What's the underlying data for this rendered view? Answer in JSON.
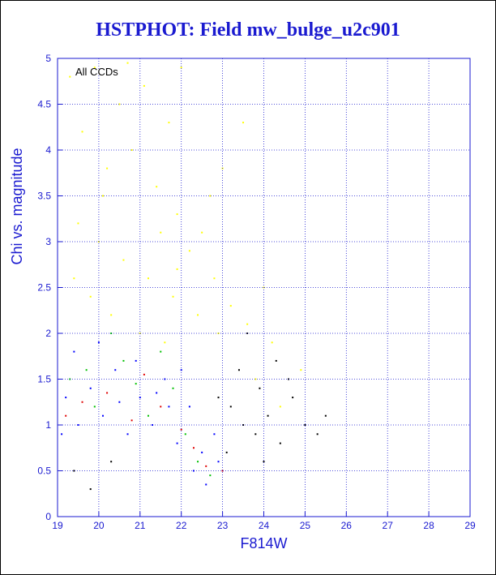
{
  "chart_data": {
    "type": "scatter",
    "title": "HSTPHOT: Field mw_bulge_u2c901",
    "xlabel": "F814W",
    "ylabel": "Chi vs. magnitude",
    "annotation": "All CCDs",
    "xlim": [
      19,
      29
    ],
    "ylim": [
      0,
      5
    ],
    "x_ticks": [
      19,
      20,
      21,
      22,
      23,
      24,
      25,
      26,
      27,
      28,
      29
    ],
    "y_ticks": [
      0,
      0.5,
      1,
      1.5,
      2,
      2.5,
      3,
      3.5,
      4,
      4.5,
      5
    ],
    "grid": true,
    "series": [
      {
        "color": "#ffff00",
        "description_points": [
          [
            19.3,
            4.8
          ],
          [
            19.6,
            4.2
          ],
          [
            19.9,
            4.9
          ],
          [
            20.2,
            3.8
          ],
          [
            20.5,
            4.5
          ],
          [
            20.8,
            4.0
          ],
          [
            21.1,
            4.7
          ],
          [
            21.4,
            3.6
          ],
          [
            21.7,
            4.3
          ],
          [
            21.9,
            3.3
          ],
          [
            19.5,
            3.2
          ],
          [
            20.0,
            3.0
          ],
          [
            20.6,
            2.8
          ],
          [
            21.2,
            2.6
          ],
          [
            21.8,
            2.4
          ],
          [
            22.2,
            2.9
          ],
          [
            22.5,
            3.1
          ],
          [
            22.8,
            2.6
          ],
          [
            23.2,
            2.3
          ],
          [
            19.4,
            2.6
          ],
          [
            20.3,
            2.2
          ],
          [
            21.0,
            2.0
          ],
          [
            21.6,
            1.9
          ],
          [
            22.4,
            2.2
          ],
          [
            23.6,
            2.1
          ],
          [
            24.2,
            1.9
          ],
          [
            22.0,
            4.9
          ],
          [
            20.7,
            4.95
          ],
          [
            23.0,
            3.8
          ],
          [
            23.5,
            4.3
          ],
          [
            19.8,
            2.4
          ],
          [
            21.5,
            3.1
          ],
          [
            22.7,
            3.5
          ],
          [
            24.0,
            2.5
          ],
          [
            20.1,
            3.5
          ],
          [
            21.9,
            2.7
          ],
          [
            22.9,
            2.0
          ],
          [
            23.8,
            1.5
          ],
          [
            24.4,
            1.2
          ],
          [
            24.9,
            1.6
          ]
        ]
      },
      {
        "color": "#0000ff",
        "description_points": [
          [
            19.2,
            1.3
          ],
          [
            19.5,
            1.0
          ],
          [
            19.8,
            1.4
          ],
          [
            20.1,
            1.1
          ],
          [
            20.4,
            1.6
          ],
          [
            20.7,
            0.9
          ],
          [
            21.0,
            1.3
          ],
          [
            21.3,
            1.0
          ],
          [
            21.6,
            1.5
          ],
          [
            21.9,
            0.8
          ],
          [
            22.2,
            1.2
          ],
          [
            22.5,
            0.7
          ],
          [
            22.8,
            0.9
          ],
          [
            19.4,
            1.8
          ],
          [
            20.0,
            1.9
          ],
          [
            20.9,
            1.7
          ],
          [
            21.7,
            1.2
          ],
          [
            22.3,
            0.5
          ],
          [
            22.6,
            0.35
          ],
          [
            19.1,
            0.9
          ],
          [
            20.5,
            1.25
          ],
          [
            21.4,
            1.35
          ],
          [
            22.0,
            1.6
          ],
          [
            22.9,
            0.6
          ]
        ]
      },
      {
        "color": "#00c000",
        "description_points": [
          [
            19.3,
            1.5
          ],
          [
            19.9,
            1.2
          ],
          [
            20.6,
            1.7
          ],
          [
            21.2,
            1.1
          ],
          [
            21.8,
            1.4
          ],
          [
            22.1,
            0.9
          ],
          [
            22.4,
            0.6
          ],
          [
            20.3,
            2.0
          ],
          [
            21.5,
            1.8
          ],
          [
            22.7,
            0.45
          ],
          [
            19.7,
            1.6
          ],
          [
            20.9,
            1.45
          ]
        ]
      },
      {
        "color": "#e00000",
        "description_points": [
          [
            19.6,
            1.25
          ],
          [
            20.2,
            1.35
          ],
          [
            20.8,
            1.05
          ],
          [
            21.5,
            1.2
          ],
          [
            22.0,
            0.95
          ],
          [
            22.6,
            0.55
          ],
          [
            19.2,
            1.1
          ],
          [
            21.1,
            1.55
          ],
          [
            22.3,
            0.75
          ],
          [
            23.0,
            0.5
          ]
        ]
      },
      {
        "color": "#000000",
        "description_points": [
          [
            23.2,
            1.2
          ],
          [
            23.5,
            1.0
          ],
          [
            23.8,
            0.9
          ],
          [
            24.1,
            1.1
          ],
          [
            24.4,
            0.8
          ],
          [
            24.7,
            1.3
          ],
          [
            25.0,
            1.0
          ],
          [
            23.4,
            1.6
          ],
          [
            23.9,
            1.4
          ],
          [
            24.3,
            1.7
          ],
          [
            25.3,
            0.9
          ],
          [
            19.4,
            0.5
          ],
          [
            19.8,
            0.3
          ],
          [
            20.3,
            0.6
          ],
          [
            23.1,
            0.7
          ],
          [
            24.6,
            1.5
          ],
          [
            25.5,
            1.1
          ],
          [
            23.6,
            2.0
          ],
          [
            24.0,
            0.6
          ],
          [
            22.9,
            1.3
          ]
        ]
      }
    ]
  }
}
